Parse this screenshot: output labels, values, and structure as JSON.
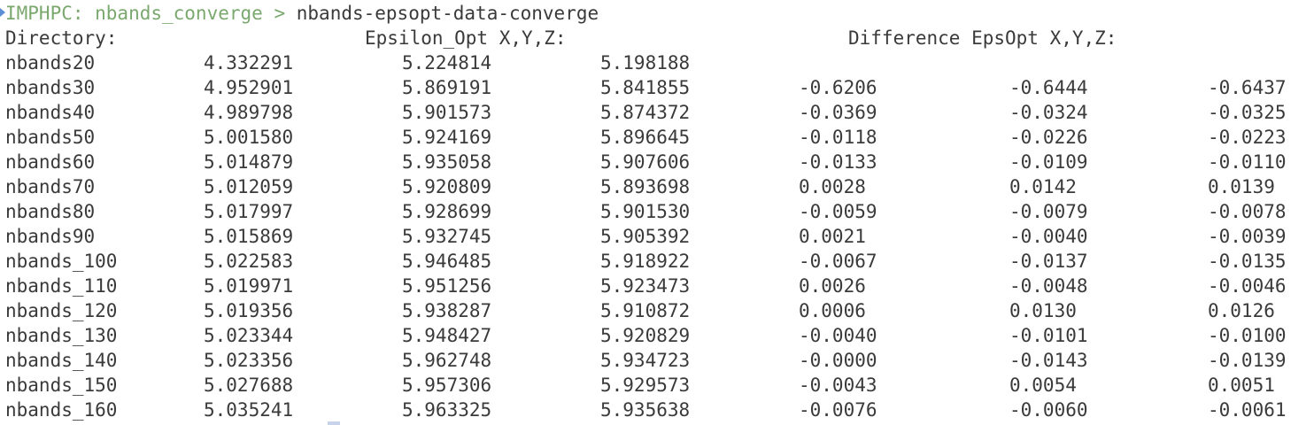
{
  "prompt": {
    "host": "IMPHPC: nbands_converge",
    "separator": ">",
    "command": "nbands-epsopt-data-converge"
  },
  "header": {
    "directory": "Directory:",
    "epsilon_opt": "Epsilon_Opt X,Y,Z:",
    "difference": "Difference EpsOpt X,Y,Z:"
  },
  "rows": [
    {
      "dir": "nbands20",
      "x": "4.332291",
      "y": "5.224814",
      "z": "5.198188",
      "dx": "",
      "dy": "",
      "dz": ""
    },
    {
      "dir": "nbands30",
      "x": "4.952901",
      "y": "5.869191",
      "z": "5.841855",
      "dx": "-0.6206",
      "dy": "-0.6444",
      "dz": "-0.6437"
    },
    {
      "dir": "nbands40",
      "x": "4.989798",
      "y": "5.901573",
      "z": "5.874372",
      "dx": "-0.0369",
      "dy": "-0.0324",
      "dz": "-0.0325"
    },
    {
      "dir": "nbands50",
      "x": "5.001580",
      "y": "5.924169",
      "z": "5.896645",
      "dx": "-0.0118",
      "dy": "-0.0226",
      "dz": "-0.0223"
    },
    {
      "dir": "nbands60",
      "x": "5.014879",
      "y": "5.935058",
      "z": "5.907606",
      "dx": "-0.0133",
      "dy": "-0.0109",
      "dz": "-0.0110"
    },
    {
      "dir": "nbands70",
      "x": "5.012059",
      "y": "5.920809",
      "z": "5.893698",
      "dx": "0.0028",
      "dy": "0.0142",
      "dz": "0.0139"
    },
    {
      "dir": "nbands80",
      "x": "5.017997",
      "y": "5.928699",
      "z": "5.901530",
      "dx": "-0.0059",
      "dy": "-0.0079",
      "dz": "-0.0078"
    },
    {
      "dir": "nbands90",
      "x": "5.015869",
      "y": "5.932745",
      "z": "5.905392",
      "dx": "0.0021",
      "dy": "-0.0040",
      "dz": "-0.0039"
    },
    {
      "dir": "nbands_100",
      "x": "5.022583",
      "y": "5.946485",
      "z": "5.918922",
      "dx": "-0.0067",
      "dy": "-0.0137",
      "dz": "-0.0135"
    },
    {
      "dir": "nbands_110",
      "x": "5.019971",
      "y": "5.951256",
      "z": "5.923473",
      "dx": "0.0026",
      "dy": "-0.0048",
      "dz": "-0.0046"
    },
    {
      "dir": "nbands_120",
      "x": "5.019356",
      "y": "5.938287",
      "z": "5.910872",
      "dx": "0.0006",
      "dy": "0.0130",
      "dz": "0.0126"
    },
    {
      "dir": "nbands_130",
      "x": "5.023344",
      "y": "5.948427",
      "z": "5.920829",
      "dx": "-0.0040",
      "dy": "-0.0101",
      "dz": "-0.0100"
    },
    {
      "dir": "nbands_140",
      "x": "5.023356",
      "y": "5.962748",
      "z": "5.934723",
      "dx": "-0.0000",
      "dy": "-0.0143",
      "dz": "-0.0139"
    },
    {
      "dir": "nbands_150",
      "x": "5.027688",
      "y": "5.957306",
      "z": "5.929573",
      "dx": "-0.0043",
      "dy": "0.0054",
      "dz": "0.0051"
    },
    {
      "dir": "nbands_160",
      "x": "5.035241",
      "y": "5.963325",
      "z": "5.935638",
      "dx": "-0.0076",
      "dy": "-0.0060",
      "dz": "-0.0061"
    }
  ],
  "colors": {
    "background": "#ffffff",
    "text": "#3a3a3a",
    "prompt": "#7aa86e",
    "marker": "#5b8fd6",
    "cursor": "#c7d3ea"
  }
}
